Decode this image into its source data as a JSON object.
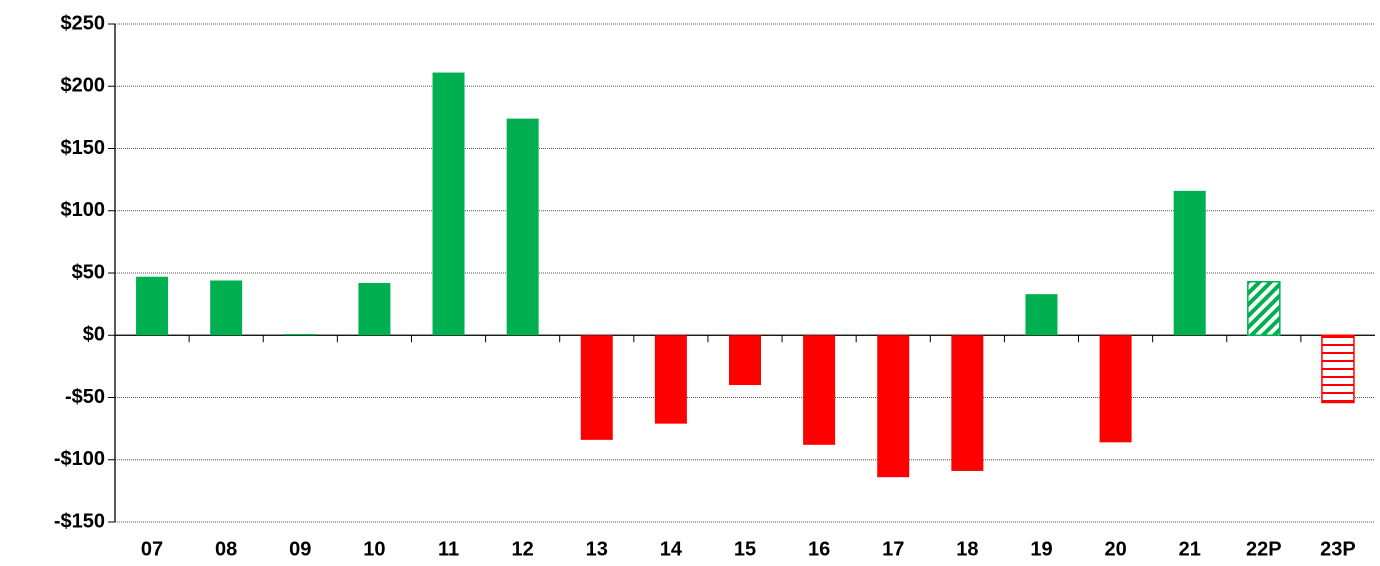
{
  "chart_data": {
    "type": "bar",
    "categories": [
      "07",
      "08",
      "09",
      "10",
      "11",
      "12",
      "13",
      "14",
      "15",
      "16",
      "17",
      "18",
      "19",
      "20",
      "21",
      "22P",
      "23P"
    ],
    "values": [
      47,
      44,
      1,
      42,
      211,
      174,
      -84,
      -71,
      -40,
      -88,
      -114,
      -109,
      33,
      -86,
      116,
      43,
      -54
    ],
    "colors": [
      "#00b050",
      "#00b050",
      "#00b050",
      "#00b050",
      "#00b050",
      "#00b050",
      "#ff0000",
      "#ff0000",
      "#ff0000",
      "#ff0000",
      "#ff0000",
      "#ff0000",
      "#00b050",
      "#ff0000",
      "#00b050",
      "#00b050",
      "#ff0000"
    ],
    "patterns": [
      "solid",
      "solid",
      "solid",
      "solid",
      "solid",
      "solid",
      "solid",
      "solid",
      "solid",
      "solid",
      "solid",
      "solid",
      "solid",
      "solid",
      "solid",
      "diagonal",
      "horizontal"
    ],
    "ylim": [
      -150,
      250
    ],
    "yticks": [
      {
        "value": -150,
        "label": "-$150"
      },
      {
        "value": -100,
        "label": "-$100"
      },
      {
        "value": -50,
        "label": "-$50"
      },
      {
        "value": 0,
        "label": "$0"
      },
      {
        "value": 50,
        "label": "$50"
      },
      {
        "value": 100,
        "label": "$100"
      },
      {
        "value": 150,
        "label": "$150"
      },
      {
        "value": 200,
        "label": "$200"
      },
      {
        "value": 250,
        "label": "$250"
      }
    ],
    "grid": true
  }
}
